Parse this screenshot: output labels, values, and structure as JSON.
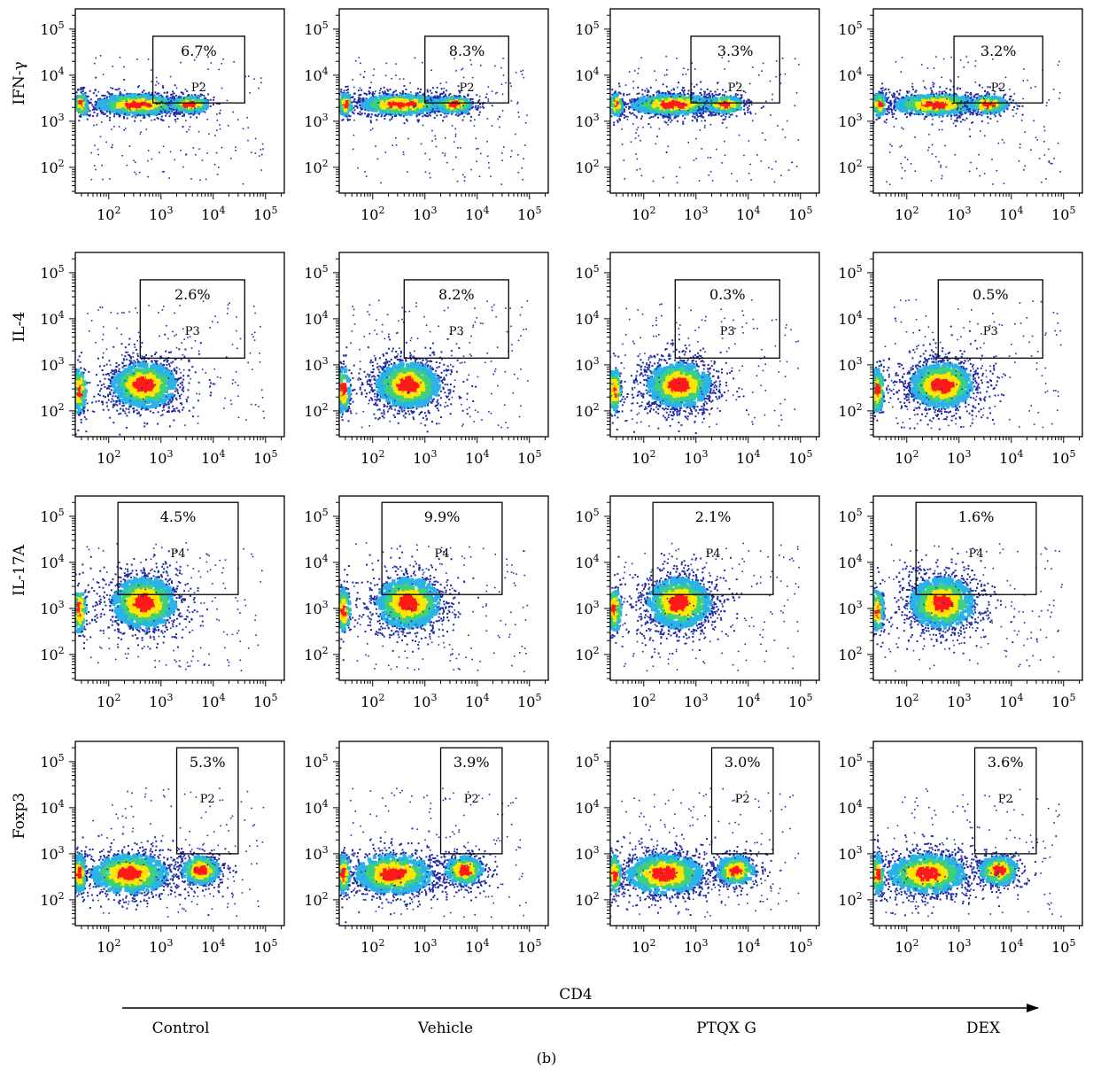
{
  "figure": {
    "panel_label": "(b)",
    "x_axis_title": "CD4",
    "groups": [
      "Control",
      "Vehicle",
      "PTQX G",
      "DEX"
    ],
    "rows": [
      "IFN-γ",
      "IL-4",
      "IL-17A",
      "Foxp3"
    ],
    "colors": {
      "density_low": "#1f2aa6",
      "density_mid": "#2bb3e6",
      "density_high": "#ffe600",
      "density_peak": "#ff1a1a",
      "green": "#3fd07a",
      "axis": "#000000"
    }
  },
  "chart_data": [
    {
      "type": "scatter",
      "row": "IFN-γ",
      "group": "Control",
      "gate": "P2",
      "percent": "6.7%",
      "xlabel": "",
      "ylabel": "IFN-γ",
      "xlim": [
        0,
        100000
      ],
      "ylim": [
        0,
        100000
      ],
      "xscale": "log",
      "yscale": "log",
      "xticks": [
        "10^2",
        "10^3",
        "10^4",
        "10^5"
      ],
      "yticks": [
        "10^2",
        "10^3",
        "10^4",
        "10^5"
      ],
      "gate_box": {
        "x": [
          700,
          40000
        ],
        "y": [
          2500,
          70000
        ]
      }
    },
    {
      "type": "scatter",
      "row": "IFN-γ",
      "group": "Vehicle",
      "gate": "P2",
      "percent": "8.3%",
      "xlabel": "",
      "ylabel": "",
      "xlim": [
        0,
        100000
      ],
      "ylim": [
        0,
        100000
      ],
      "xscale": "log",
      "yscale": "log",
      "xticks": [
        "10^2",
        "10^3",
        "10^4",
        "10^5"
      ],
      "yticks": [
        "10^2",
        "10^3",
        "10^4",
        "10^5"
      ],
      "gate_box": {
        "x": [
          1000,
          40000
        ],
        "y": [
          2500,
          70000
        ]
      }
    },
    {
      "type": "scatter",
      "row": "IFN-γ",
      "group": "PTQX G",
      "gate": "P2",
      "percent": "3.3%",
      "xlabel": "",
      "ylabel": "",
      "xlim": [
        0,
        100000
      ],
      "ylim": [
        0,
        100000
      ],
      "xscale": "log",
      "yscale": "log",
      "xticks": [
        "10^2",
        "10^3",
        "10^4",
        "10^5"
      ],
      "yticks": [
        "10^2",
        "10^3",
        "10^4",
        "10^5"
      ],
      "gate_box": {
        "x": [
          800,
          40000
        ],
        "y": [
          2500,
          70000
        ]
      }
    },
    {
      "type": "scatter",
      "row": "IFN-γ",
      "group": "DEX",
      "gate": "P2",
      "percent": "3.2%",
      "xlabel": "",
      "ylabel": "",
      "xlim": [
        0,
        100000
      ],
      "ylim": [
        0,
        100000
      ],
      "xscale": "log",
      "yscale": "log",
      "xticks": [
        "10^2",
        "10^3",
        "10^4",
        "10^5"
      ],
      "yticks": [
        "10^2",
        "10^3",
        "10^4",
        "10^5"
      ],
      "gate_box": {
        "x": [
          800,
          40000
        ],
        "y": [
          2500,
          70000
        ]
      }
    },
    {
      "type": "scatter",
      "row": "IL-4",
      "group": "Control",
      "gate": "P3",
      "percent": "2.6%",
      "xlabel": "",
      "ylabel": "IL-4",
      "xlim": [
        0,
        100000
      ],
      "ylim": [
        0,
        100000
      ],
      "xscale": "log",
      "yscale": "log",
      "xticks": [
        "10^2",
        "10^3",
        "10^4",
        "10^5"
      ],
      "yticks": [
        "10^2",
        "10^3",
        "10^4",
        "10^5"
      ],
      "gate_box": {
        "x": [
          400,
          40000
        ],
        "y": [
          1400,
          70000
        ]
      }
    },
    {
      "type": "scatter",
      "row": "IL-4",
      "group": "Vehicle",
      "gate": "P3",
      "percent": "8.2%",
      "xlabel": "",
      "ylabel": "",
      "xlim": [
        0,
        100000
      ],
      "ylim": [
        0,
        100000
      ],
      "xscale": "log",
      "yscale": "log",
      "xticks": [
        "10^2",
        "10^3",
        "10^4",
        "10^5"
      ],
      "yticks": [
        "10^2",
        "10^3",
        "10^4",
        "10^5"
      ],
      "gate_box": {
        "x": [
          400,
          40000
        ],
        "y": [
          1400,
          70000
        ]
      }
    },
    {
      "type": "scatter",
      "row": "IL-4",
      "group": "PTQX G",
      "gate": "P3",
      "percent": "0.3%",
      "xlabel": "",
      "ylabel": "",
      "xlim": [
        0,
        100000
      ],
      "ylim": [
        0,
        100000
      ],
      "xscale": "log",
      "yscale": "log",
      "xticks": [
        "10^2",
        "10^3",
        "10^4",
        "10^5"
      ],
      "yticks": [
        "10^2",
        "10^3",
        "10^4",
        "10^5"
      ],
      "gate_box": {
        "x": [
          400,
          40000
        ],
        "y": [
          1400,
          70000
        ]
      }
    },
    {
      "type": "scatter",
      "row": "IL-4",
      "group": "DEX",
      "gate": "P3",
      "percent": "0.5%",
      "xlabel": "",
      "ylabel": "",
      "xlim": [
        0,
        100000
      ],
      "ylim": [
        0,
        100000
      ],
      "xscale": "log",
      "yscale": "log",
      "xticks": [
        "10^2",
        "10^3",
        "10^4",
        "10^5"
      ],
      "yticks": [
        "10^2",
        "10^3",
        "10^4",
        "10^5"
      ],
      "gate_box": {
        "x": [
          400,
          40000
        ],
        "y": [
          1400,
          70000
        ]
      }
    },
    {
      "type": "scatter",
      "row": "IL-17A",
      "group": "Control",
      "gate": "P4",
      "percent": "4.5%",
      "xlabel": "",
      "ylabel": "IL-17A",
      "xlim": [
        0,
        100000
      ],
      "ylim": [
        0,
        100000
      ],
      "xscale": "log",
      "yscale": "log",
      "xticks": [
        "10^2",
        "10^3",
        "10^4",
        "10^5"
      ],
      "yticks": [
        "10^2",
        "10^3",
        "10^4",
        "10^5"
      ],
      "gate_box": {
        "x": [
          150,
          30000
        ],
        "y": [
          2000,
          200000
        ]
      }
    },
    {
      "type": "scatter",
      "row": "IL-17A",
      "group": "Vehicle",
      "gate": "P4",
      "percent": "9.9%",
      "xlabel": "",
      "ylabel": "",
      "xlim": [
        0,
        100000
      ],
      "ylim": [
        0,
        100000
      ],
      "xscale": "log",
      "yscale": "log",
      "xticks": [
        "10^2",
        "10^3",
        "10^4",
        "10^5"
      ],
      "yticks": [
        "10^2",
        "10^3",
        "10^4",
        "10^5"
      ],
      "gate_box": {
        "x": [
          150,
          30000
        ],
        "y": [
          2000,
          200000
        ]
      }
    },
    {
      "type": "scatter",
      "row": "IL-17A",
      "group": "PTQX G",
      "gate": "P4",
      "percent": "2.1%",
      "xlabel": "",
      "ylabel": "",
      "xlim": [
        0,
        100000
      ],
      "ylim": [
        0,
        100000
      ],
      "xscale": "log",
      "yscale": "log",
      "xticks": [
        "10^2",
        "10^3",
        "10^4",
        "10^5"
      ],
      "yticks": [
        "10^2",
        "10^3",
        "10^4",
        "10^5"
      ],
      "gate_box": {
        "x": [
          150,
          30000
        ],
        "y": [
          2000,
          200000
        ]
      }
    },
    {
      "type": "scatter",
      "row": "IL-17A",
      "group": "DEX",
      "gate": "P4",
      "percent": "1.6%",
      "xlabel": "",
      "ylabel": "",
      "xlim": [
        0,
        100000
      ],
      "ylim": [
        0,
        100000
      ],
      "xscale": "log",
      "yscale": "log",
      "xticks": [
        "10^2",
        "10^3",
        "10^4",
        "10^5"
      ],
      "yticks": [
        "10^2",
        "10^3",
        "10^4",
        "10^5"
      ],
      "gate_box": {
        "x": [
          150,
          30000
        ],
        "y": [
          2000,
          200000
        ]
      }
    },
    {
      "type": "scatter",
      "row": "Foxp3",
      "group": "Control",
      "gate": "P2",
      "percent": "5.3%",
      "xlabel": "",
      "ylabel": "Foxp3",
      "xlim": [
        0,
        100000
      ],
      "ylim": [
        0,
        100000
      ],
      "xscale": "log",
      "yscale": "log",
      "xticks": [
        "10^2",
        "10^3",
        "10^4",
        "10^5"
      ],
      "yticks": [
        "10^2",
        "10^3",
        "10^4",
        "10^5"
      ],
      "gate_box": {
        "x": [
          2000,
          30000
        ],
        "y": [
          1000,
          200000
        ]
      }
    },
    {
      "type": "scatter",
      "row": "Foxp3",
      "group": "Vehicle",
      "gate": "P2",
      "percent": "3.9%",
      "xlabel": "",
      "ylabel": "",
      "xlim": [
        0,
        100000
      ],
      "ylim": [
        0,
        100000
      ],
      "xscale": "log",
      "yscale": "log",
      "xticks": [
        "10^2",
        "10^3",
        "10^4",
        "10^5"
      ],
      "yticks": [
        "10^2",
        "10^3",
        "10^4",
        "10^5"
      ],
      "gate_box": {
        "x": [
          2000,
          30000
        ],
        "y": [
          1000,
          200000
        ]
      }
    },
    {
      "type": "scatter",
      "row": "Foxp3",
      "group": "PTQX G",
      "gate": "P2",
      "percent": "3.0%",
      "xlabel": "",
      "ylabel": "",
      "xlim": [
        0,
        100000
      ],
      "ylim": [
        0,
        100000
      ],
      "xscale": "log",
      "yscale": "log",
      "xticks": [
        "10^2",
        "10^3",
        "10^4",
        "10^5"
      ],
      "yticks": [
        "10^2",
        "10^3",
        "10^4",
        "10^5"
      ],
      "gate_box": {
        "x": [
          2000,
          30000
        ],
        "y": [
          1000,
          200000
        ]
      }
    },
    {
      "type": "scatter",
      "row": "Foxp3",
      "group": "DEX",
      "gate": "P2",
      "percent": "3.6%",
      "xlabel": "",
      "ylabel": "",
      "xlim": [
        0,
        100000
      ],
      "ylim": [
        0,
        100000
      ],
      "xscale": "log",
      "yscale": "log",
      "xticks": [
        "10^2",
        "10^3",
        "10^4",
        "10^5"
      ],
      "yticks": [
        "10^2",
        "10^3",
        "10^4",
        "10^5"
      ],
      "gate_box": {
        "x": [
          2000,
          30000
        ],
        "y": [
          1000,
          200000
        ]
      }
    }
  ]
}
